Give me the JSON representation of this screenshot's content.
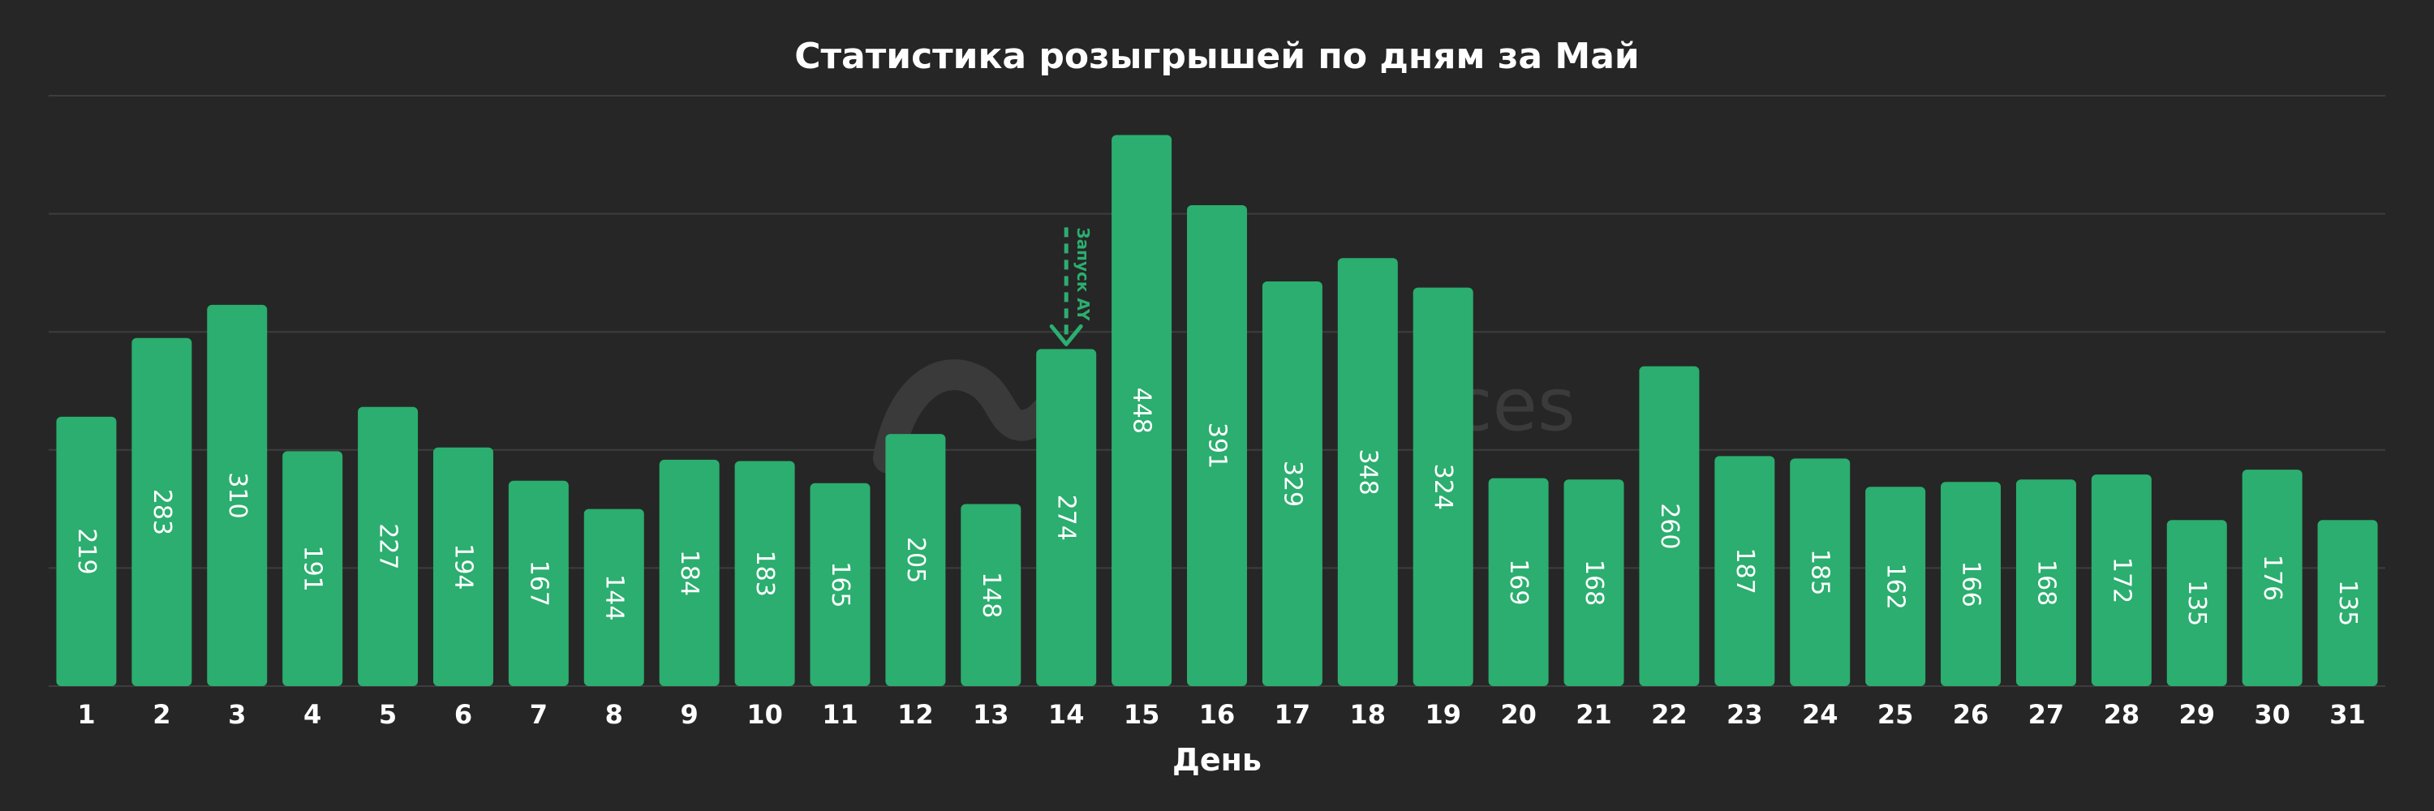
{
  "chart_data": {
    "type": "bar",
    "title": "Статистика розыгрышей по дням за Май",
    "xlabel": "День",
    "ylabel": "",
    "categories": [
      "1",
      "2",
      "3",
      "4",
      "5",
      "6",
      "7",
      "8",
      "9",
      "10",
      "11",
      "12",
      "13",
      "14",
      "15",
      "16",
      "17",
      "18",
      "19",
      "20",
      "21",
      "22",
      "23",
      "24",
      "25",
      "26",
      "27",
      "28",
      "29",
      "30",
      "31"
    ],
    "values": [
      219,
      283,
      310,
      191,
      227,
      194,
      167,
      144,
      184,
      183,
      165,
      205,
      148,
      274,
      448,
      391,
      329,
      348,
      324,
      169,
      168,
      260,
      187,
      185,
      162,
      166,
      168,
      172,
      135,
      176,
      135
    ],
    "ylim": [
      0,
      480
    ],
    "grid": true,
    "bar_color": "#2bae6f",
    "background_color": "#262626",
    "annotation": {
      "text": "Запуск AY",
      "category": "14",
      "color": "#2bae6f"
    },
    "watermark": {
      "text": "ces"
    }
  }
}
